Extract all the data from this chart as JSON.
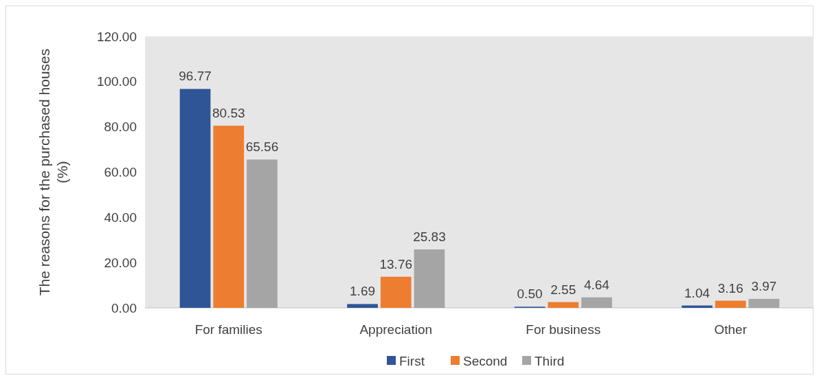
{
  "chart_data": {
    "type": "bar",
    "ylabel": "The reasons for the purchased houses (%)",
    "categories": [
      "For families",
      "Appreciation",
      "For business",
      "Other"
    ],
    "series": [
      {
        "name": "First",
        "color": "#2f5597",
        "values": [
          96.77,
          1.69,
          0.5,
          1.04
        ],
        "value_labels": [
          "96.77",
          "1.69",
          "0.50",
          "1.04"
        ]
      },
      {
        "name": "Second",
        "color": "#ed7d31",
        "values": [
          80.53,
          13.76,
          2.55,
          3.16
        ],
        "value_labels": [
          "80.53",
          "13.76",
          "2.55",
          "3.16"
        ]
      },
      {
        "name": "Third",
        "color": "#a5a5a5",
        "values": [
          65.56,
          25.83,
          4.64,
          3.97
        ],
        "value_labels": [
          "65.56",
          "25.83",
          "4.64",
          "3.97"
        ]
      }
    ],
    "ylim": [
      0,
      120
    ],
    "yticks": [
      {
        "value": 0,
        "label": "0.00"
      },
      {
        "value": 20,
        "label": "20.00"
      },
      {
        "value": 40,
        "label": "40.00"
      },
      {
        "value": 60,
        "label": "60.00"
      },
      {
        "value": 80,
        "label": "80.00"
      },
      {
        "value": 100,
        "label": "100.00"
      },
      {
        "value": 120,
        "label": "120.00"
      }
    ],
    "legend": "bottom"
  }
}
